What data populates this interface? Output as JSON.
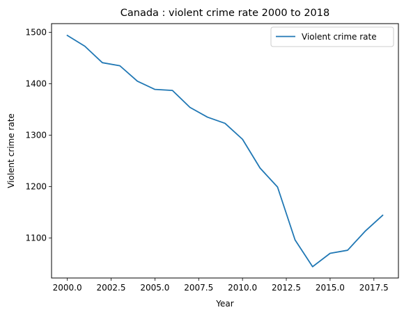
{
  "chart_data": {
    "type": "line",
    "title": "Canada : violent crime rate 2000 to 2018",
    "xlabel": "Year",
    "ylabel": "Violent crime rate",
    "xlim": [
      1999.1,
      2018.9
    ],
    "ylim": [
      1022,
      1517
    ],
    "x_ticks": [
      2000,
      2002.5,
      2005,
      2007.5,
      2010,
      2012.5,
      2015,
      2017.5
    ],
    "x_tick_labels": [
      "2000.0",
      "2002.5",
      "2005.0",
      "2007.5",
      "2010.0",
      "2012.5",
      "2015.0",
      "2017.5"
    ],
    "y_ticks": [
      1100,
      1200,
      1300,
      1400,
      1500
    ],
    "y_tick_labels": [
      "1100",
      "1200",
      "1300",
      "1400",
      "1500"
    ],
    "grid": false,
    "legend_position": "upper right",
    "series": [
      {
        "name": "Violent crime rate",
        "color": "#1f77b4",
        "x": [
          2000,
          2001,
          2002,
          2003,
          2004,
          2005,
          2006,
          2007,
          2008,
          2009,
          2010,
          2011,
          2012,
          2013,
          2014,
          2015,
          2016,
          2017,
          2018
        ],
        "y": [
          1494,
          1473,
          1441,
          1435,
          1405,
          1389,
          1387,
          1354,
          1335,
          1323,
          1292,
          1236,
          1199,
          1096,
          1044,
          1070,
          1076,
          1113,
          1144
        ]
      }
    ]
  }
}
